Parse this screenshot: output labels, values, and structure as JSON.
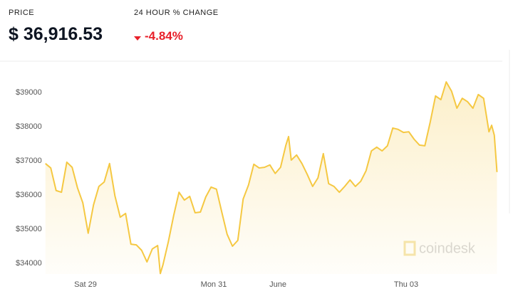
{
  "header": {
    "price_label": "PRICE",
    "change_label": "24 HOUR % CHANGE",
    "price": "$ 36,916.53",
    "change": "-4.84%"
  },
  "chart_data": {
    "type": "line",
    "color": "#f5c842",
    "watermark": "coindesk",
    "grid": false,
    "x": [
      -15,
      -13,
      -11,
      -9,
      -7,
      -5,
      -3,
      -1,
      1,
      3,
      5,
      7,
      9,
      11,
      13,
      15,
      17,
      19,
      21,
      23,
      25,
      27,
      28,
      29,
      31,
      33,
      35,
      37,
      39,
      41,
      43,
      45,
      47,
      49,
      51,
      53,
      55,
      57,
      59,
      61,
      63,
      65,
      67,
      69,
      71,
      73,
      75,
      76,
      77,
      79,
      81,
      83,
      85,
      87,
      89,
      91,
      93,
      95,
      97,
      99,
      101,
      103,
      105,
      107,
      109,
      111,
      113,
      115,
      117,
      119,
      121,
      123,
      125,
      127,
      129,
      131,
      133,
      135,
      137,
      139,
      141,
      143,
      145,
      147,
      149,
      151,
      152,
      153,
      154
    ],
    "values": [
      36920,
      36790,
      36130,
      36080,
      36960,
      36810,
      36210,
      35770,
      34880,
      35710,
      36250,
      36380,
      36920,
      35980,
      35350,
      35460,
      34560,
      34540,
      34380,
      34040,
      34420,
      34520,
      33700,
      33960,
      34630,
      35400,
      36080,
      35850,
      35960,
      35480,
      35500,
      35940,
      36230,
      36170,
      35500,
      34850,
      34500,
      34670,
      35880,
      36290,
      36900,
      36790,
      36810,
      36880,
      36630,
      36810,
      37460,
      37710,
      37020,
      37170,
      36920,
      36600,
      36250,
      36500,
      37210,
      36330,
      36250,
      36080,
      36250,
      36440,
      36250,
      36400,
      36710,
      37290,
      37400,
      37290,
      37440,
      37960,
      37920,
      37830,
      37850,
      37630,
      37460,
      37440,
      38130,
      38900,
      38790,
      39310,
      39040,
      38540,
      38830,
      38730,
      38540,
      38940,
      38830,
      37850,
      38040,
      37750,
      36670
    ],
    "xlim": [
      -15,
      154.5
    ],
    "xticks": [
      {
        "value": 0,
        "label": "Sat 29"
      },
      {
        "value": 48,
        "label": "Mon 31"
      },
      {
        "value": 72,
        "label": "June"
      },
      {
        "value": 120,
        "label": "Thu 03"
      }
    ],
    "ylim": [
      33687.5,
      39833
    ],
    "yticks": [
      {
        "value": 34000,
        "label": "$34000"
      },
      {
        "value": 35000,
        "label": "$35000"
      },
      {
        "value": 36000,
        "label": "$36000"
      },
      {
        "value": 37000,
        "label": "$37000"
      },
      {
        "value": 38000,
        "label": "$38000"
      },
      {
        "value": 39000,
        "label": "$39000"
      }
    ]
  }
}
